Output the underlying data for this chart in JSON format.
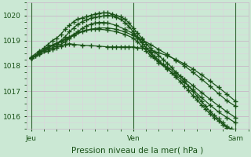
{
  "bg_color": "#cbe8d4",
  "grid_color_major": "#c8b8c8",
  "grid_color_minor": "#ddd0dd",
  "line_color": "#1a5218",
  "marker": "+",
  "markersize": 4.0,
  "markeredgewidth": 1.0,
  "linewidth": 0.9,
  "xlabel": "Pression niveau de la mer( hPa )",
  "xtick_labels": [
    "Jeu",
    "Ven",
    "Sam"
  ],
  "xtick_positions": [
    0,
    24,
    48
  ],
  "ylim": [
    1015.5,
    1020.5
  ],
  "yticks": [
    1016,
    1017,
    1018,
    1019,
    1020
  ],
  "xlim": [
    -1,
    51
  ],
  "lines": [
    {
      "x": [
        0,
        1,
        2,
        3,
        4,
        5,
        6,
        7,
        8,
        9,
        10,
        11,
        12,
        13,
        14,
        15,
        16,
        17,
        18,
        19,
        20,
        21,
        22,
        23,
        24,
        25,
        26,
        27,
        28,
        29,
        30,
        31,
        32,
        33,
        34,
        35,
        36,
        37,
        38,
        39,
        40,
        41,
        42,
        43,
        44,
        45,
        46,
        47,
        48
      ],
      "y": [
        1018.3,
        1018.4,
        1018.55,
        1018.7,
        1018.85,
        1019.0,
        1019.1,
        1019.25,
        1019.45,
        1019.6,
        1019.75,
        1019.85,
        1019.9,
        1019.95,
        1020.0,
        1020.05,
        1020.08,
        1020.1,
        1020.1,
        1020.05,
        1020.0,
        1019.95,
        1019.85,
        1019.7,
        1019.5,
        1019.3,
        1019.1,
        1018.88,
        1018.7,
        1018.55,
        1018.4,
        1018.25,
        1018.1,
        1017.95,
        1017.75,
        1017.6,
        1017.4,
        1017.2,
        1017.0,
        1016.8,
        1016.6,
        1016.4,
        1016.2,
        1016.05,
        1015.9,
        1015.75,
        1015.6,
        1015.5,
        1015.45
      ]
    },
    {
      "x": [
        0,
        1,
        2,
        3,
        4,
        5,
        6,
        7,
        8,
        9,
        10,
        11,
        12,
        13,
        14,
        15,
        16,
        17,
        18,
        19,
        20,
        21,
        22,
        23,
        24,
        25,
        26,
        27,
        28,
        29,
        30,
        31,
        32,
        33,
        34,
        35,
        36,
        37,
        38,
        39,
        40,
        41,
        42,
        43,
        44,
        45,
        46,
        47,
        48
      ],
      "y": [
        1018.3,
        1018.4,
        1018.5,
        1018.62,
        1018.72,
        1018.82,
        1018.88,
        1019.0,
        1019.15,
        1019.35,
        1019.5,
        1019.65,
        1019.75,
        1019.82,
        1019.88,
        1019.92,
        1019.95,
        1019.98,
        1020.0,
        1019.98,
        1019.92,
        1019.85,
        1019.72,
        1019.55,
        1019.35,
        1019.15,
        1018.95,
        1018.72,
        1018.55,
        1018.38,
        1018.22,
        1018.05,
        1017.9,
        1017.72,
        1017.55,
        1017.38,
        1017.2,
        1017.02,
        1016.82,
        1016.65,
        1016.45,
        1016.28,
        1016.1,
        1015.95,
        1015.82,
        1015.68,
        1015.55,
        1015.48,
        1015.42
      ]
    },
    {
      "x": [
        0,
        2,
        4,
        6,
        8,
        10,
        12,
        14,
        16,
        18,
        20,
        22,
        24,
        26,
        28,
        30,
        32,
        34,
        36,
        38,
        40,
        42,
        44,
        46,
        48
      ],
      "y": [
        1018.35,
        1018.6,
        1018.75,
        1018.9,
        1019.05,
        1019.2,
        1019.35,
        1019.45,
        1019.5,
        1019.5,
        1019.45,
        1019.35,
        1019.2,
        1019.05,
        1018.85,
        1018.65,
        1018.45,
        1018.22,
        1018.0,
        1017.75,
        1017.48,
        1017.2,
        1016.9,
        1016.62,
        1016.4
      ]
    },
    {
      "x": [
        0,
        2,
        4,
        5,
        6,
        7,
        8,
        9,
        10,
        11,
        13,
        15,
        16,
        18,
        20,
        22,
        24,
        25,
        26,
        27,
        28,
        30,
        32,
        34,
        36,
        38,
        40,
        42,
        44,
        46,
        48
      ],
      "y": [
        1018.3,
        1018.52,
        1018.72,
        1018.8,
        1018.88,
        1018.95,
        1019.05,
        1019.15,
        1019.25,
        1019.32,
        1019.42,
        1019.45,
        1019.45,
        1019.42,
        1019.35,
        1019.25,
        1019.1,
        1018.95,
        1018.78,
        1018.6,
        1018.4,
        1018.18,
        1017.95,
        1017.72,
        1017.48,
        1017.22,
        1016.95,
        1016.68,
        1016.42,
        1016.18,
        1015.95
      ]
    },
    {
      "x": [
        0,
        2,
        3,
        4,
        5,
        6,
        7,
        8,
        9,
        10,
        11,
        12,
        13,
        14,
        15,
        16,
        17,
        18,
        20,
        22,
        24,
        25,
        26,
        27,
        28,
        29,
        30,
        32,
        34,
        36,
        38,
        40,
        42,
        44,
        46,
        48
      ],
      "y": [
        1018.3,
        1018.5,
        1018.58,
        1018.65,
        1018.72,
        1018.78,
        1018.85,
        1018.95,
        1019.08,
        1019.22,
        1019.35,
        1019.48,
        1019.58,
        1019.65,
        1019.7,
        1019.72,
        1019.72,
        1019.7,
        1019.6,
        1019.45,
        1019.28,
        1019.1,
        1018.92,
        1018.72,
        1018.52,
        1018.32,
        1018.12,
        1017.88,
        1017.62,
        1017.35,
        1017.05,
        1016.75,
        1016.45,
        1016.18,
        1015.95,
        1015.75
      ]
    },
    {
      "x": [
        0,
        2,
        4,
        5,
        6,
        7,
        8,
        9,
        10,
        12,
        14,
        16,
        18,
        19,
        20,
        21,
        22,
        23,
        24,
        25,
        26,
        28,
        30,
        32,
        34,
        36,
        38,
        40,
        42,
        44,
        46,
        48
      ],
      "y": [
        1018.3,
        1018.45,
        1018.58,
        1018.65,
        1018.72,
        1018.78,
        1018.85,
        1018.88,
        1018.85,
        1018.82,
        1018.8,
        1018.78,
        1018.75,
        1018.75,
        1018.75,
        1018.75,
        1018.75,
        1018.75,
        1018.75,
        1018.72,
        1018.7,
        1018.62,
        1018.52,
        1018.4,
        1018.25,
        1018.08,
        1017.88,
        1017.65,
        1017.4,
        1017.15,
        1016.88,
        1016.6
      ]
    }
  ],
  "vline_positions": [
    0,
    24,
    48
  ],
  "vline_color": "#336633",
  "tick_fontsize": 6.5,
  "xlabel_fontsize": 7.5
}
